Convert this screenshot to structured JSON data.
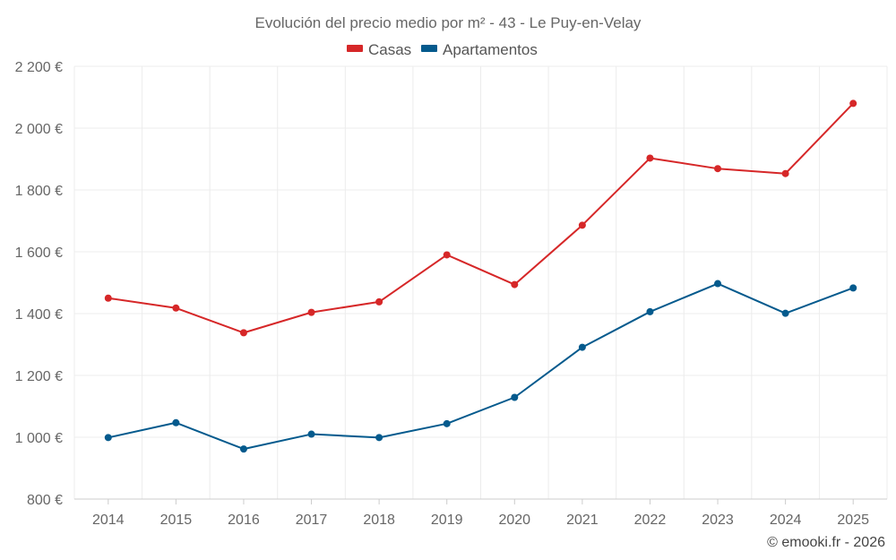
{
  "chart_data": {
    "type": "line",
    "title": "Evolución del precio medio por m² - 43 - Le Puy-en-Velay",
    "categories": [
      "2014",
      "2015",
      "2016",
      "2017",
      "2018",
      "2019",
      "2020",
      "2021",
      "2022",
      "2023",
      "2024",
      "2025"
    ],
    "series": [
      {
        "name": "Casas",
        "color": "#d62728",
        "values": [
          1450,
          1418,
          1338,
          1404,
          1438,
          1590,
          1494,
          1686,
          1903,
          1869,
          1853,
          2080
        ]
      },
      {
        "name": "Apartamentos",
        "color": "#045a8d",
        "values": [
          999,
          1047,
          962,
          1010,
          999,
          1044,
          1129,
          1291,
          1406,
          1497,
          1401,
          1483
        ]
      }
    ],
    "ylim": [
      800,
      2200
    ],
    "yticks": [
      800,
      1000,
      1200,
      1400,
      1600,
      1800,
      2000,
      2200
    ],
    "ytick_labels": [
      "800 €",
      "1 000 €",
      "1 200 €",
      "1 400 €",
      "1 600 €",
      "1 800 €",
      "2 000 €",
      "2 200 €"
    ],
    "xlabel": "",
    "ylabel": "",
    "grid": true,
    "legend": "top-center"
  },
  "credit": "© emooki.fr - 2026"
}
